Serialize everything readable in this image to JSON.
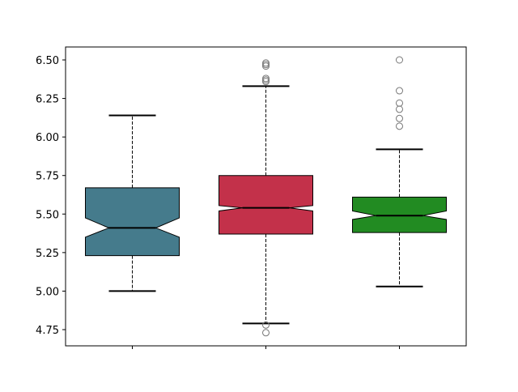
{
  "chart_data": {
    "type": "boxplot",
    "notched": true,
    "title": "",
    "xlabel": "",
    "ylabel": "",
    "ylim": [
      4.65,
      6.58
    ],
    "yticks": [
      "4.75",
      "5.00",
      "5.25",
      "5.50",
      "5.75",
      "6.00",
      "6.25",
      "6.50"
    ],
    "grid": false,
    "categories": [
      "",
      "",
      ""
    ],
    "boxes": [
      {
        "color": "#457b8c",
        "whisker_low": 5.0,
        "q1": 5.23,
        "notch_low": 5.35,
        "median": 5.41,
        "notch_high": 5.475,
        "q3": 5.67,
        "whisker_high": 6.14,
        "outliers": []
      },
      {
        "color": "#c3314a",
        "whisker_low": 4.79,
        "q1": 5.37,
        "notch_low": 5.52,
        "median": 5.54,
        "notch_high": 5.555,
        "q3": 5.75,
        "whisker_high": 6.33,
        "outliers": [
          6.48,
          6.47,
          6.46,
          6.38,
          6.37,
          6.36,
          4.78,
          4.73
        ]
      },
      {
        "color": "#228b22",
        "whisker_low": 5.03,
        "q1": 5.38,
        "notch_low": 5.465,
        "median": 5.49,
        "notch_high": 5.52,
        "q3": 5.61,
        "whisker_high": 5.92,
        "outliers": [
          6.5,
          6.3,
          6.22,
          6.18,
          6.12,
          6.07
        ]
      }
    ]
  }
}
